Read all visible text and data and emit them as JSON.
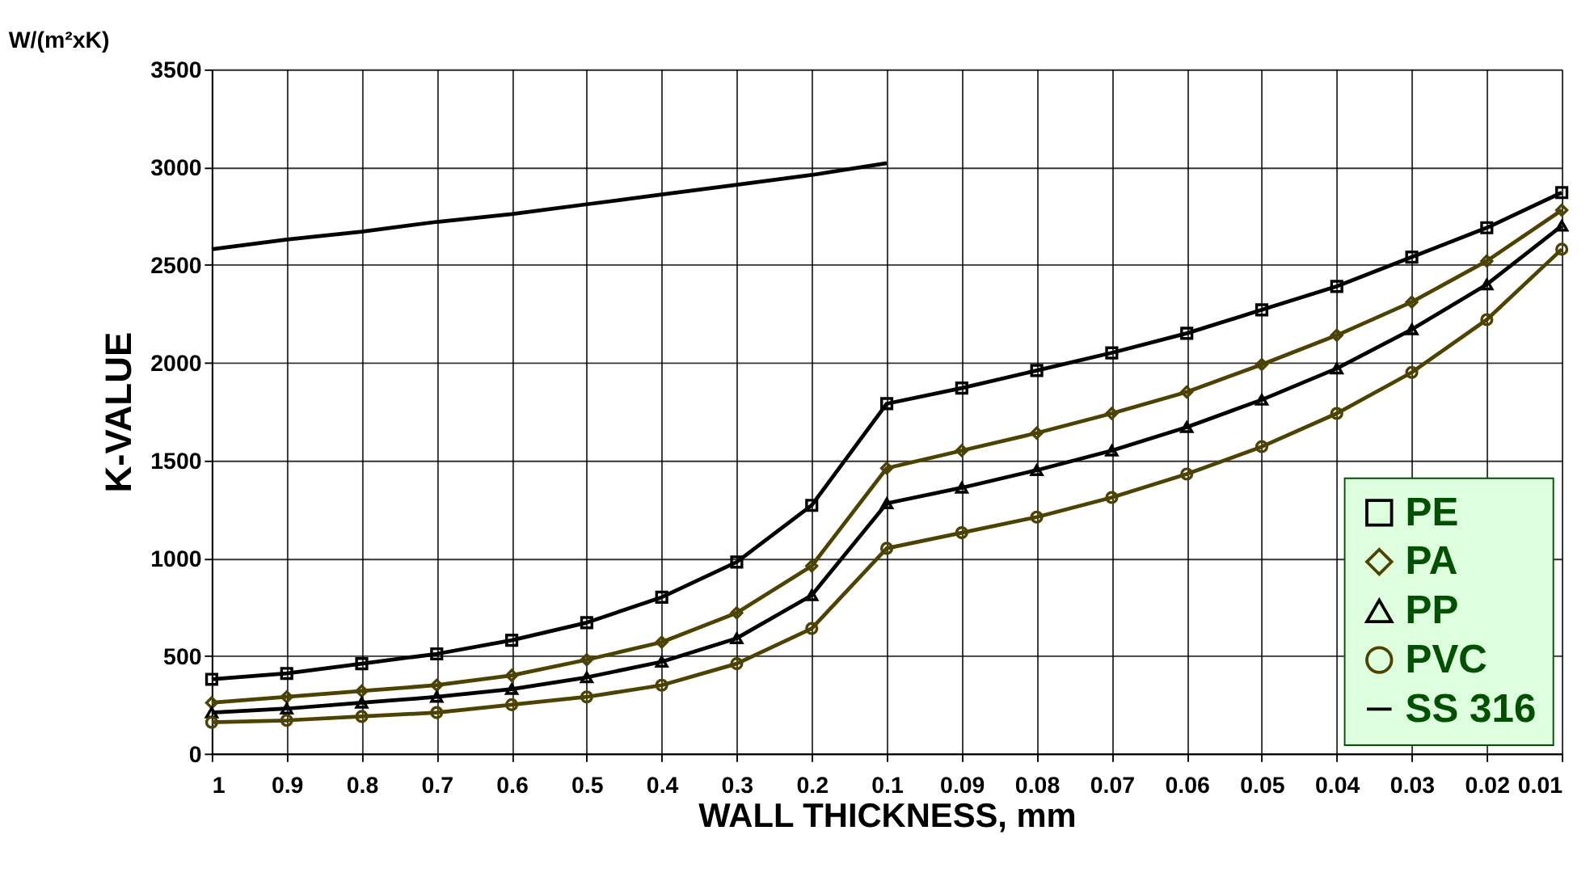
{
  "chart_data": {
    "type": "line",
    "title": "W/(m²xK)",
    "xlabel": "WALL THICKNESS, mm",
    "ylabel": "K-VALUE",
    "categories": [
      "1",
      "0.9",
      "0.8",
      "0.7",
      "0.6",
      "0.5",
      "0.4",
      "0.3",
      "0.2",
      "0.1",
      "0.09",
      "0.08",
      "0.07",
      "0.06",
      "0.05",
      "0.04",
      "0.03",
      "0.02",
      "0.01"
    ],
    "series": [
      {
        "name": "PE",
        "color": "#000000",
        "marker": "square",
        "values": [
          380,
          410,
          460,
          510,
          580,
          670,
          800,
          980,
          1270,
          1790,
          1870,
          1960,
          2050,
          2150,
          2270,
          2390,
          2540,
          2690,
          2870
        ]
      },
      {
        "name": "PA",
        "color": "#4d4300",
        "marker": "diamond",
        "values": [
          260,
          290,
          320,
          350,
          400,
          480,
          570,
          720,
          960,
          1460,
          1550,
          1640,
          1740,
          1850,
          1990,
          2140,
          2310,
          2520,
          2780
        ]
      },
      {
        "name": "PP",
        "color": "#000000",
        "marker": "triangle",
        "values": [
          210,
          230,
          260,
          290,
          330,
          390,
          470,
          590,
          810,
          1280,
          1360,
          1450,
          1550,
          1670,
          1810,
          1970,
          2170,
          2400,
          2700
        ]
      },
      {
        "name": "PVC",
        "color": "#4d4300",
        "marker": "circle",
        "values": [
          160,
          170,
          190,
          210,
          250,
          290,
          350,
          460,
          640,
          1050,
          1130,
          1210,
          1310,
          1430,
          1570,
          1740,
          1950,
          2220,
          2580
        ]
      },
      {
        "name": "SS 316",
        "color": "#000000",
        "marker": "none",
        "values": [
          2580,
          2630,
          2670,
          2720,
          2760,
          2810,
          2860,
          2910,
          2960,
          3020,
          null,
          null,
          null,
          null,
          null,
          null,
          null,
          null,
          null
        ]
      }
    ],
    "ylim": [
      0,
      3500
    ],
    "yticks": [
      0,
      500,
      1000,
      1500,
      2000,
      2500,
      3000,
      3500
    ],
    "grid": true,
    "legend": "bottom right",
    "line_style": "solid"
  }
}
